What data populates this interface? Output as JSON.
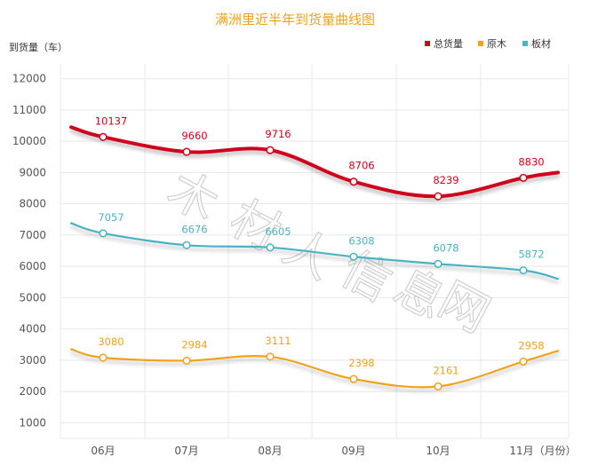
{
  "chart_data": {
    "type": "line",
    "title": "满洲里近半年到货量曲线图",
    "ylabel": "到货量（车）",
    "xlabel_suffix": "（月份）",
    "categories": [
      "06月",
      "07月",
      "08月",
      "09月",
      "10月",
      "11月"
    ],
    "yticks": [
      1000,
      2000,
      3000,
      4000,
      5000,
      6000,
      7000,
      8000,
      9000,
      10000,
      11000,
      12000
    ],
    "ylim": [
      500,
      12500
    ],
    "grid": true,
    "legend_position": "top-right",
    "watermark": "木材人信息网",
    "series": [
      {
        "name": "总货量",
        "color": "#d0021b",
        "values": [
          10137,
          9660,
          9716,
          8706,
          8239,
          8830
        ],
        "edge_start": 10450,
        "edge_end": 9000
      },
      {
        "name": "原木",
        "color": "#f0a21e",
        "values": [
          3080,
          2984,
          3111,
          2398,
          2161,
          2958
        ],
        "edge_start": 3350,
        "edge_end": 3300
      },
      {
        "name": "板材",
        "color": "#4ab3c4",
        "values": [
          7057,
          6676,
          6605,
          6308,
          6078,
          5872
        ],
        "edge_start": 7380,
        "edge_end": 5600
      }
    ]
  }
}
